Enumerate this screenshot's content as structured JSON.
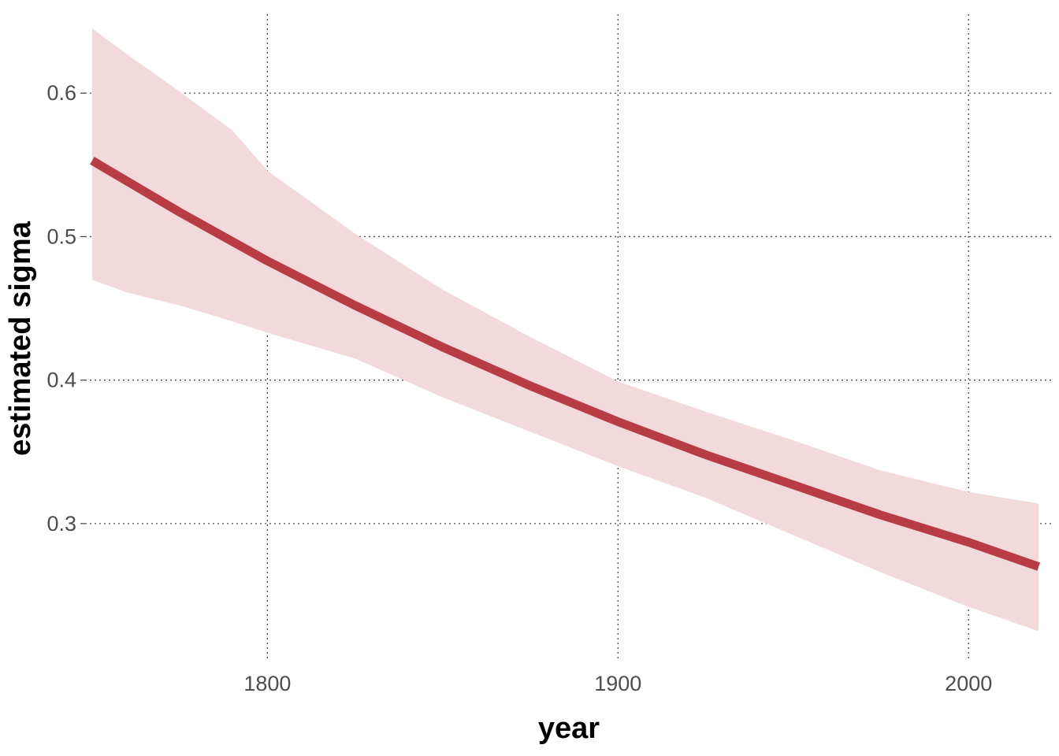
{
  "chart_data": {
    "type": "line",
    "title": "",
    "xlabel": "year",
    "ylabel": "estimated sigma",
    "xlim": [
      1748,
      2024
    ],
    "ylim": [
      0.205,
      0.655
    ],
    "x_ticks": [
      1800,
      1900,
      2000
    ],
    "y_ticks": [
      0.3,
      0.4,
      0.5,
      0.6
    ],
    "x_tick_labels": [
      "1800",
      "1900",
      "2000"
    ],
    "y_tick_labels": [
      "0.3",
      "0.4",
      "0.5",
      "0.6"
    ],
    "grid": true,
    "grid_style": "dotted",
    "legend": "none",
    "series": [
      {
        "x": [
          1750,
          1775,
          1800,
          1825,
          1850,
          1875,
          1900,
          1925,
          1950,
          1975,
          2000,
          2020
        ],
        "y": [
          0.553,
          0.517,
          0.483,
          0.452,
          0.423,
          0.396,
          0.371,
          0.348,
          0.327,
          0.306,
          0.287,
          0.27
        ],
        "color": "#b83c45"
      }
    ],
    "band": {
      "x": [
        1750,
        1760,
        1775,
        1790,
        1800,
        1825,
        1850,
        1875,
        1900,
        1925,
        1950,
        1975,
        2000,
        2020
      ],
      "lower": [
        0.47,
        0.461,
        0.452,
        0.441,
        0.433,
        0.415,
        0.388,
        0.364,
        0.34,
        0.318,
        0.292,
        0.266,
        0.242,
        0.225
      ],
      "upper": [
        0.645,
        0.627,
        0.601,
        0.574,
        0.546,
        0.502,
        0.463,
        0.43,
        0.399,
        0.378,
        0.358,
        0.337,
        0.322,
        0.314
      ],
      "color": "#f1d9dc"
    }
  }
}
